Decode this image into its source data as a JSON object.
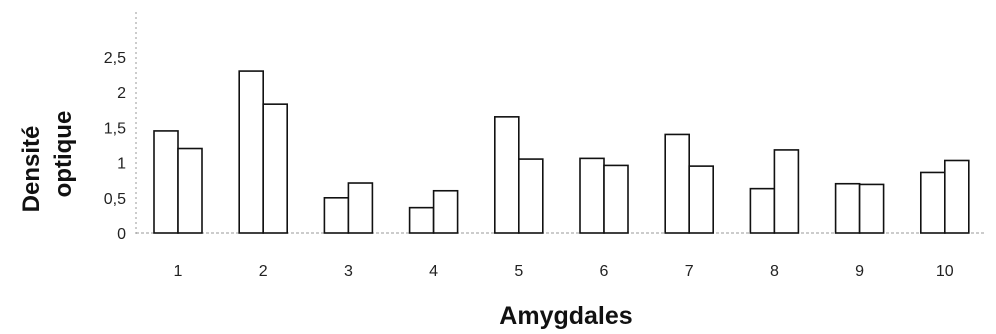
{
  "chart_data": {
    "type": "bar",
    "xlabel": "Amygdales",
    "ylabel": [
      "Densité",
      "optique"
    ],
    "categories": [
      "1",
      "2",
      "3",
      "4",
      "5",
      "6",
      "7",
      "8",
      "9",
      "10"
    ],
    "yticks": [
      "0",
      "0,5",
      "1",
      "1,5",
      "2",
      "2,5"
    ],
    "ylim": [
      0,
      2.5
    ],
    "grid": false,
    "series": [
      {
        "values": [
          1.45,
          2.3,
          0.5,
          0.36,
          1.65,
          1.06,
          1.4,
          0.63,
          0.7,
          0.86
        ]
      },
      {
        "values": [
          1.2,
          1.83,
          0.71,
          0.6,
          1.05,
          0.96,
          0.95,
          1.18,
          0.69,
          1.03
        ]
      }
    ]
  }
}
